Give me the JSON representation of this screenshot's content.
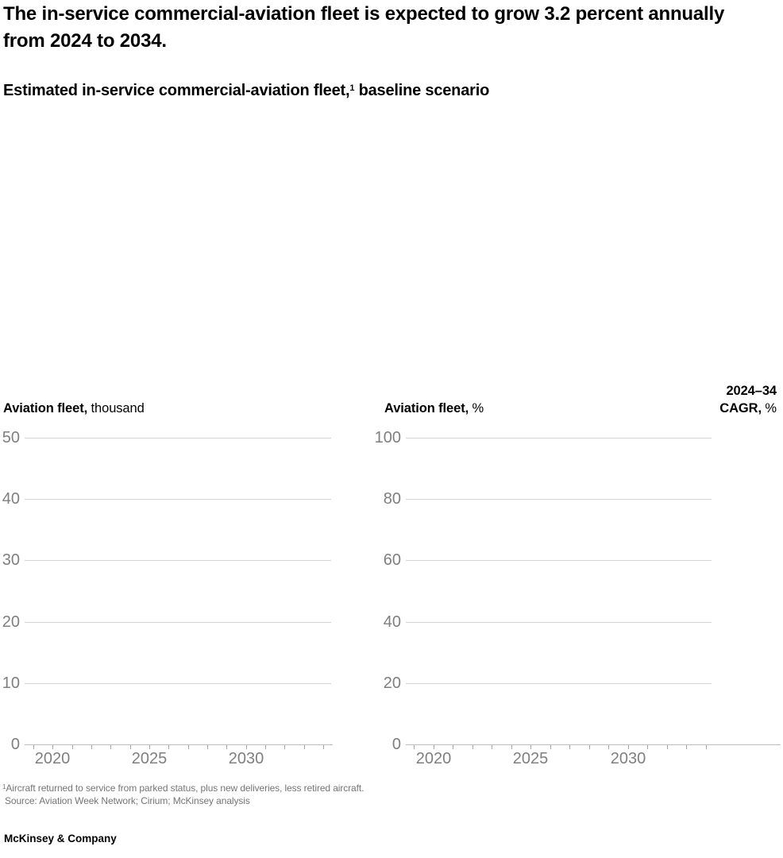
{
  "header": {
    "title": "The in-service commercial-aviation fleet is expected to grow 3.2 percent annually from 2024 to 2034.",
    "subtitle": {
      "prefix": "Estimated in-service commercial-aviation fleet,",
      "superscript": "1",
      "suffix": " baseline scenario"
    }
  },
  "cagr_column": {
    "line1": "2024–34",
    "line2_bold": "CAGR,",
    "line2_rest": " %"
  },
  "chart_data": [
    {
      "type": "line",
      "title": "Aviation fleet, thousand",
      "panel_title_bold": "Aviation fleet,",
      "panel_title_rest": " thousand",
      "ylim": [
        0,
        50
      ],
      "y_ticks": [
        0,
        10,
        20,
        30,
        40,
        50
      ],
      "xlim": [
        2019,
        2034
      ],
      "x_tick_labels": [
        "2020",
        "2025",
        "2030"
      ],
      "grid": "horizontal gridlines every 10, legend none",
      "series": []
    },
    {
      "type": "line",
      "title": "Aviation fleet, %",
      "panel_title_bold": "Aviation fleet,",
      "panel_title_rest": " %",
      "ylim": [
        0,
        100
      ],
      "y_ticks": [
        0,
        20,
        40,
        60,
        80,
        100
      ],
      "xlim": [
        2019,
        2034
      ],
      "x_tick_labels": [
        "2020",
        "2025",
        "2030"
      ],
      "grid": "horizontal gridlines every 20, legend none",
      "series": []
    }
  ],
  "footnotes": {
    "superscript": "1",
    "line1": "Aircraft returned to service from parked status, plus new deliveries, less retired aircraft.",
    "source": "Source: Aviation Week Network; Cirium; McKinsey analysis"
  },
  "branding": {
    "logo": "McKinsey & Company"
  },
  "colors": {
    "text": "#000000",
    "axis_label": "#7f7f7f",
    "gridline": "#d4d4d4",
    "axis_line": "#bdbdbd",
    "tick": "#a6a6a6",
    "footnote": "#757575"
  }
}
